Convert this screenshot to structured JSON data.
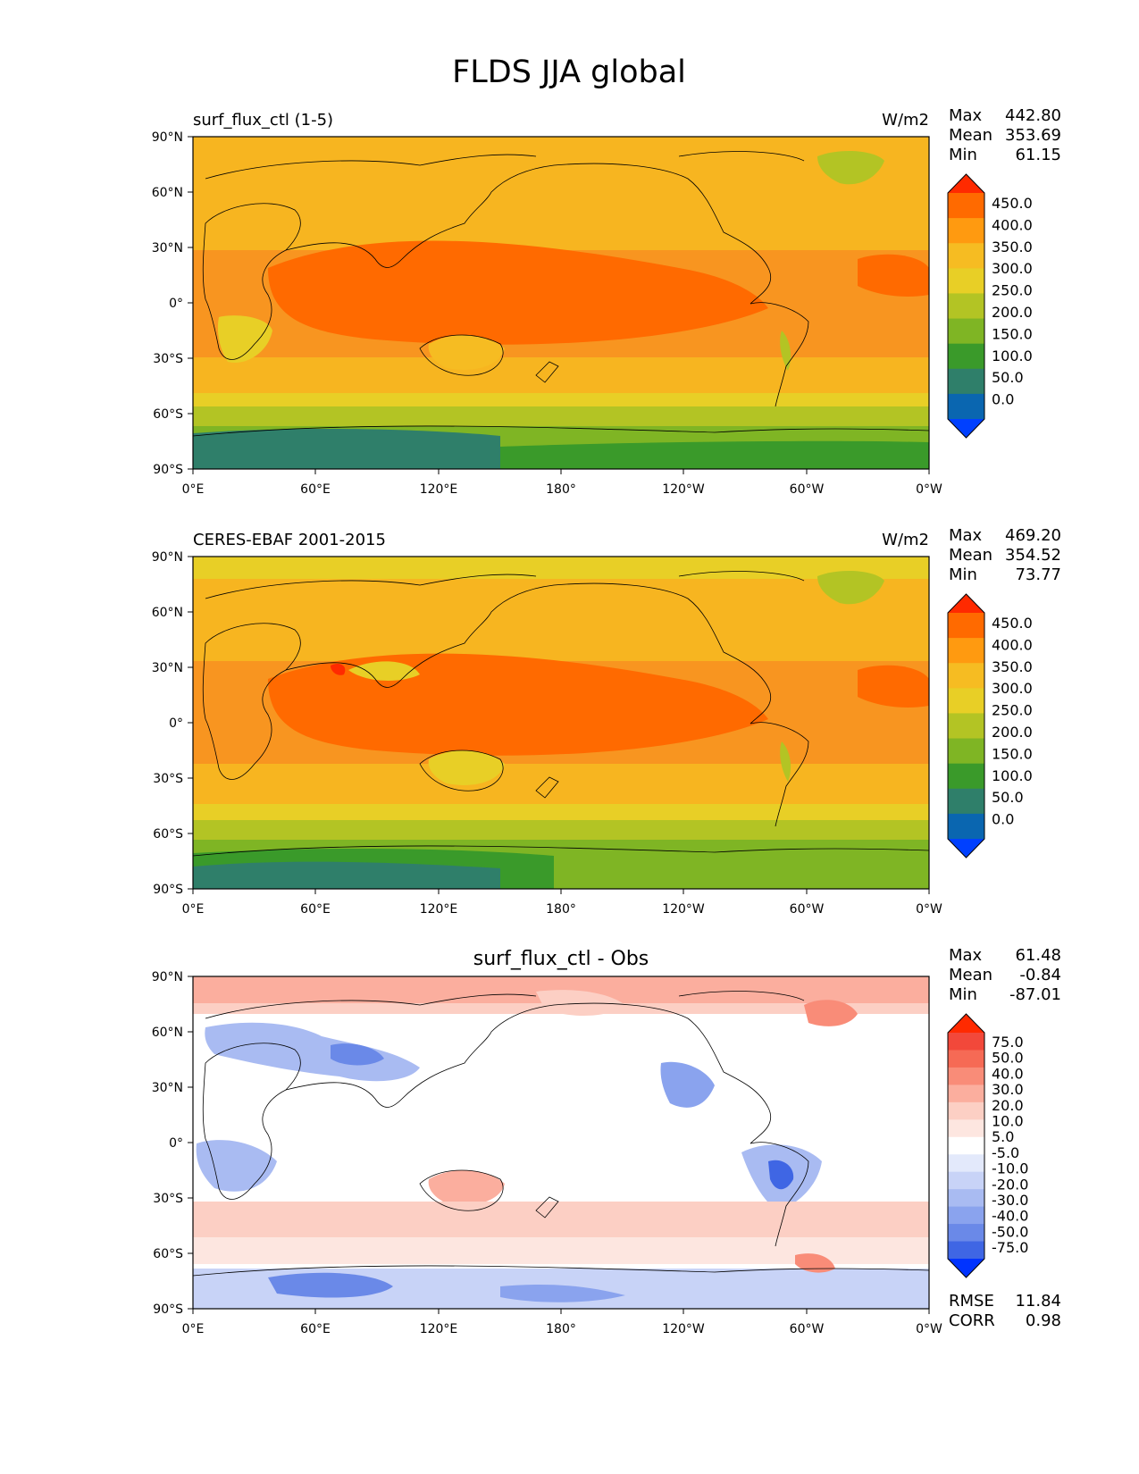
{
  "figure": {
    "title": "FLDS JJA global"
  },
  "tick_labels": {
    "lat": [
      "90°N",
      "60°N",
      "30°N",
      "0°",
      "30°S",
      "60°S",
      "90°S"
    ],
    "lon": [
      "0°E",
      "60°E",
      "120°E",
      "180°",
      "120°W",
      "60°W",
      "0°W"
    ]
  },
  "panels": [
    {
      "id": "test",
      "left_title": "surf_flux_ctl (1-5)",
      "center_title": "",
      "units": "W/m2",
      "stats": {
        "max_label": "Max",
        "max": "442.80",
        "mean_label": "Mean",
        "mean": "353.69",
        "min_label": "Min",
        "min": "61.15"
      },
      "colorbar": {
        "levels": [
          "450.0",
          "400.0",
          "350.0",
          "300.0",
          "250.0",
          "200.0",
          "150.0",
          "100.0",
          "50.0",
          "0.0"
        ],
        "colors": [
          "#ff2a00",
          "#ff6a00",
          "#ff9a10",
          "#f6bc22",
          "#e8cf26",
          "#b3c424",
          "#7fb524",
          "#3a9a2a",
          "#2f7f6a",
          "#0a66b0",
          "#0040ff"
        ]
      }
    },
    {
      "id": "reference",
      "left_title": "CERES-EBAF 2001-2015",
      "center_title": "",
      "units": "W/m2",
      "stats": {
        "max_label": "Max",
        "max": "469.20",
        "mean_label": "Mean",
        "mean": "354.52",
        "min_label": "Min",
        "min": "73.77"
      },
      "colorbar": {
        "levels": [
          "450.0",
          "400.0",
          "350.0",
          "300.0",
          "250.0",
          "200.0",
          "150.0",
          "100.0",
          "50.0",
          "0.0"
        ],
        "colors": [
          "#ff2a00",
          "#ff6a00",
          "#ff9a10",
          "#f6bc22",
          "#e8cf26",
          "#b3c424",
          "#7fb524",
          "#3a9a2a",
          "#2f7f6a",
          "#0a66b0",
          "#0040ff"
        ]
      }
    },
    {
      "id": "difference",
      "left_title": "",
      "center_title": "surf_flux_ctl - Obs",
      "units": "",
      "stats": {
        "max_label": "Max",
        "max": "61.48",
        "mean_label": "Mean",
        "mean": "-0.84",
        "min_label": "Min",
        "min": "-87.01"
      },
      "metrics": {
        "rmse_label": "RMSE",
        "rmse": "11.84",
        "corr_label": "CORR",
        "corr": "0.98"
      },
      "colorbar": {
        "levels": [
          "75.0",
          "50.0",
          "40.0",
          "30.0",
          "20.0",
          "10.0",
          "5.0",
          "-5.0",
          "-10.0",
          "-20.0",
          "-30.0",
          "-40.0",
          "-50.0",
          "-75.0"
        ],
        "colors": [
          "#ff2a00",
          "#f2483a",
          "#f66a55",
          "#f98c78",
          "#fbae9e",
          "#fccfc4",
          "#fde6e0",
          "#ffffff",
          "#e3e9fb",
          "#c8d3f7",
          "#a9bbf2",
          "#8aa3ee",
          "#6a89e8",
          "#3f66e4",
          "#0033ff"
        ]
      }
    }
  ]
}
